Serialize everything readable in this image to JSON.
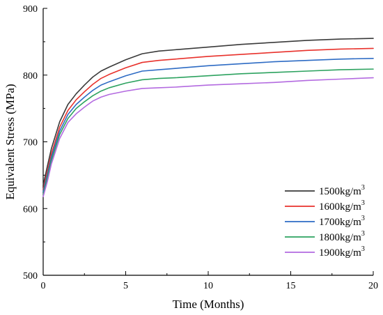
{
  "chart_data": {
    "type": "line",
    "title": "",
    "xlabel": "Time (Months)",
    "ylabel": "Equivalent Stress (MPa)",
    "xlim": [
      0,
      20
    ],
    "ylim": [
      500,
      900
    ],
    "xticks": [
      0,
      5,
      10,
      15,
      20
    ],
    "yticks": [
      500,
      600,
      700,
      800,
      900
    ],
    "grid": false,
    "legend_position": "bottom-right",
    "legend_unit_base": "kg/m",
    "legend_unit_exp": "3",
    "x": [
      0,
      0.25,
      0.5,
      1,
      1.5,
      2,
      2.5,
      3,
      3.5,
      4,
      5,
      6,
      7,
      8,
      10,
      12,
      14,
      16,
      18,
      20
    ],
    "series": [
      {
        "name": "1500",
        "color": "#3a3a3a",
        "values": [
          635,
          663,
          690,
          730,
          756,
          772,
          785,
          797,
          806,
          812,
          823,
          832,
          836,
          838,
          842,
          846,
          849,
          852,
          854,
          855
        ]
      },
      {
        "name": "1600",
        "color": "#e8312b",
        "values": [
          628,
          655,
          682,
          722,
          747,
          763,
          775,
          786,
          795,
          801,
          811,
          819,
          822,
          824,
          828,
          831,
          834,
          837,
          839,
          840
        ]
      },
      {
        "name": "1700",
        "color": "#2d6bc4",
        "values": [
          625,
          650,
          677,
          716,
          741,
          756,
          767,
          777,
          785,
          790,
          799,
          806,
          808,
          810,
          814,
          817,
          820,
          822,
          824,
          825
        ]
      },
      {
        "name": "1800",
        "color": "#2ca25f",
        "values": [
          621,
          645,
          672,
          711,
          735,
          750,
          760,
          769,
          776,
          781,
          788,
          793,
          795,
          796,
          799,
          802,
          804,
          806,
          808,
          809
        ]
      },
      {
        "name": "1900",
        "color": "#b36ae0",
        "values": [
          618,
          640,
          667,
          705,
          729,
          742,
          752,
          761,
          767,
          771,
          776,
          780,
          781,
          782,
          785,
          787,
          789,
          792,
          794,
          796
        ]
      }
    ]
  }
}
